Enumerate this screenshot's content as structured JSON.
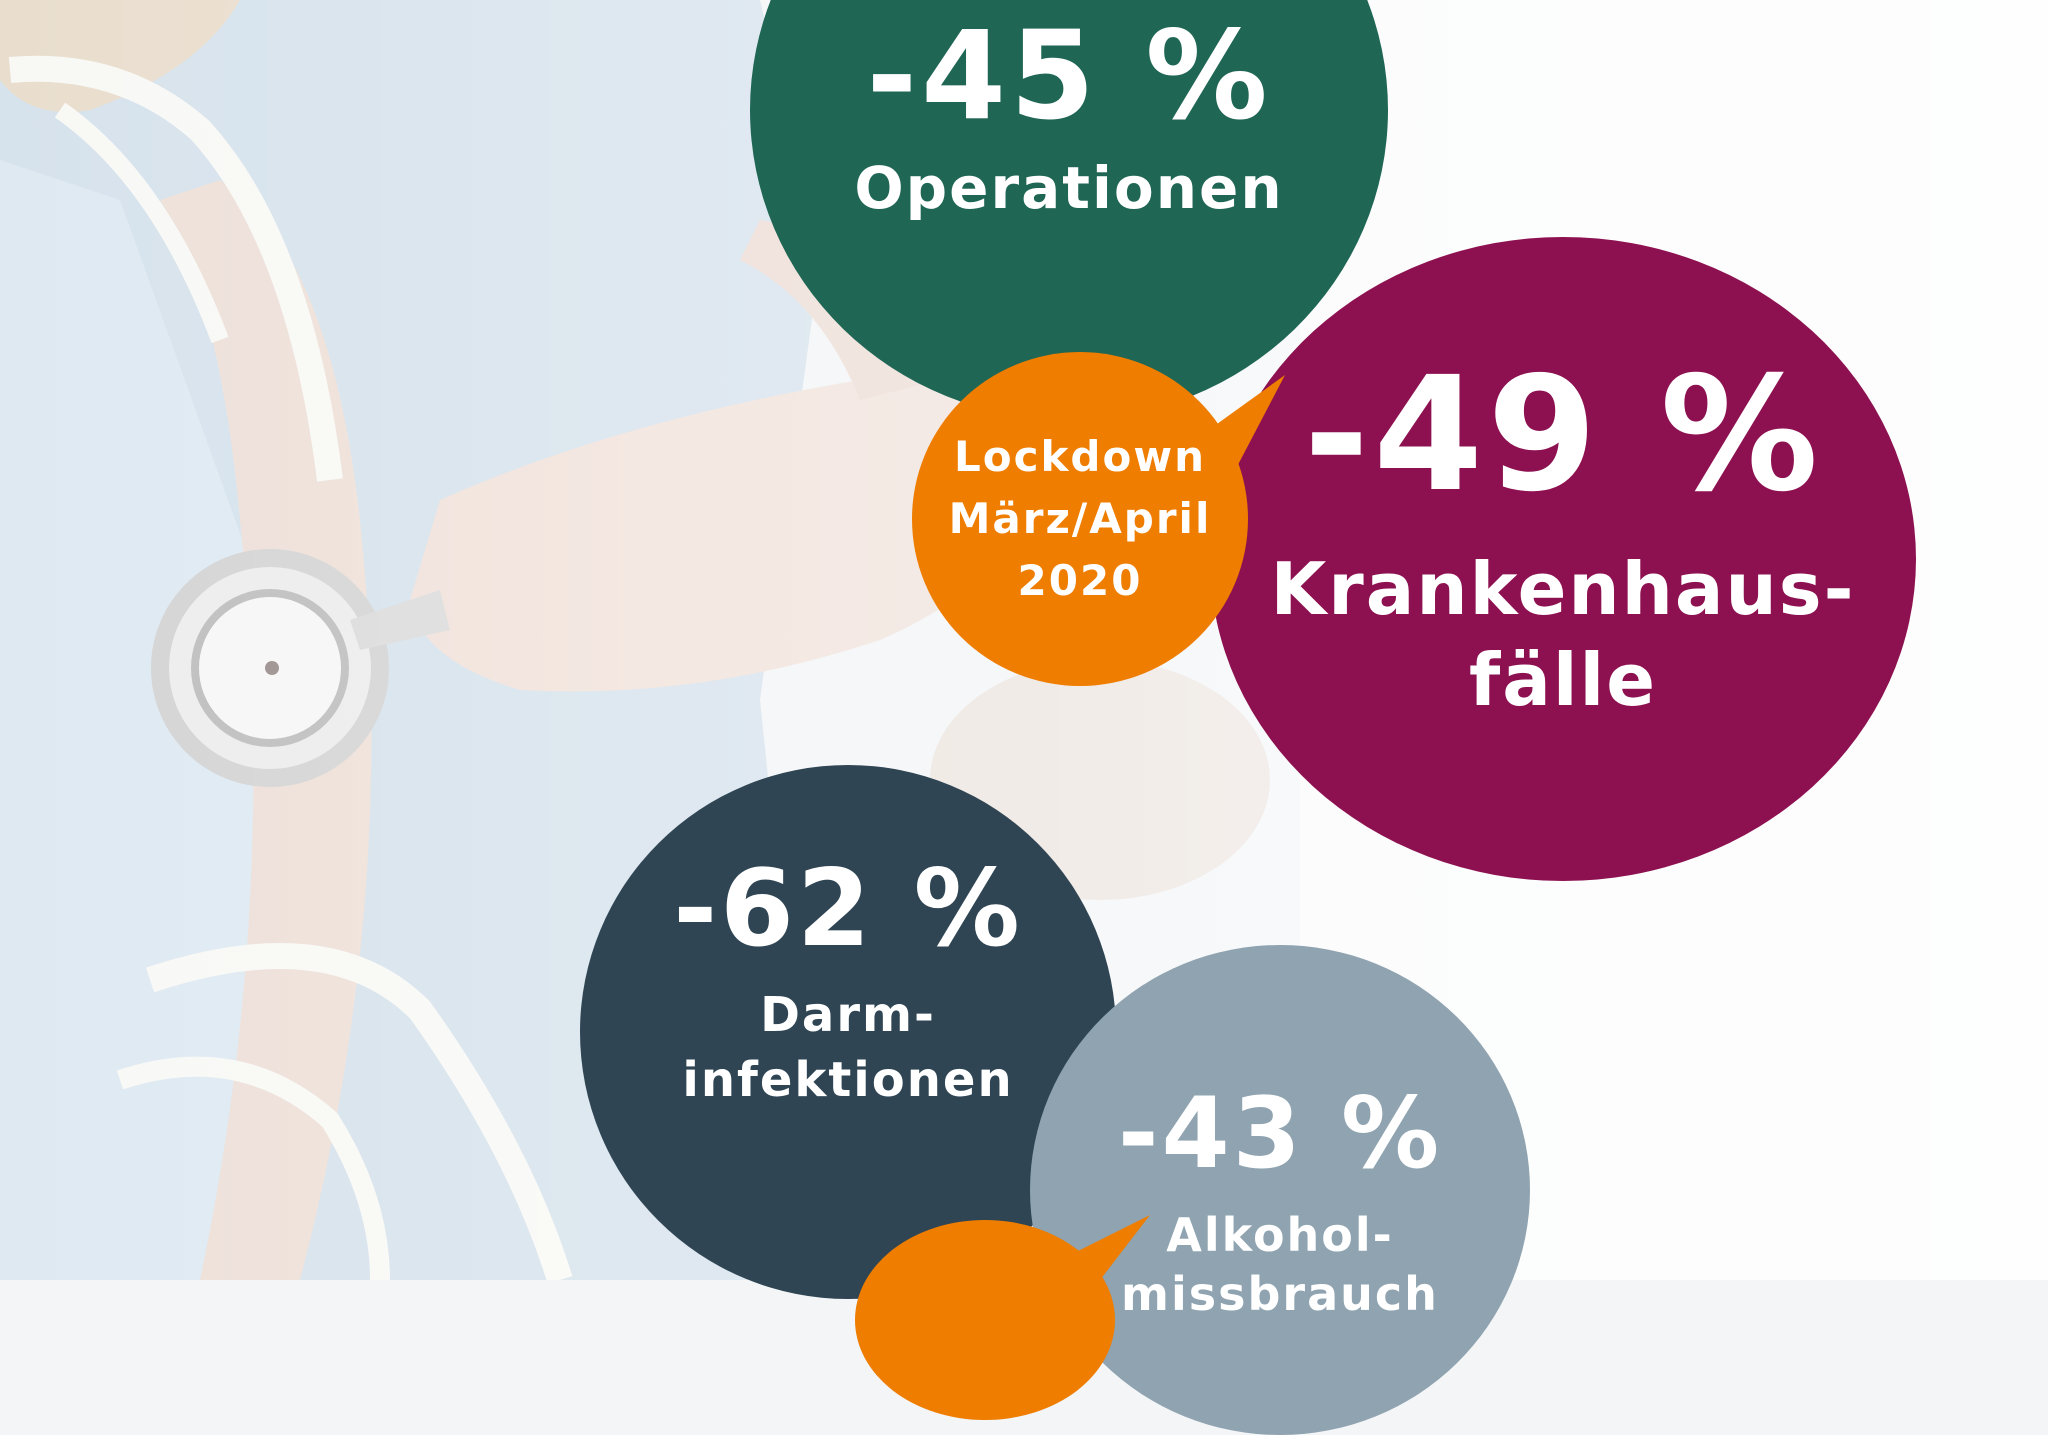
{
  "colors": {
    "green": "#1f6655",
    "purple": "#8d1150",
    "orange": "#ee7d00",
    "navy": "#2f4554",
    "slate": "#8fa3b0",
    "text": "#ffffff"
  },
  "bubbles": {
    "operations": {
      "value": "-45 %",
      "label": "Operationen"
    },
    "hospital": {
      "value": "-49 %",
      "label_line1": "Krankenhaus-",
      "label_line2": "fälle"
    },
    "lockdown_top": {
      "line1": "Lockdown",
      "line2": "März/April",
      "line3": "2020"
    },
    "intestinal": {
      "value": "-62 %",
      "label_line1": "Darm-",
      "label_line2": "infektionen"
    },
    "alcohol": {
      "value": "-43 %",
      "label_line1": "Alkohol-",
      "label_line2": "missbrauch"
    }
  }
}
